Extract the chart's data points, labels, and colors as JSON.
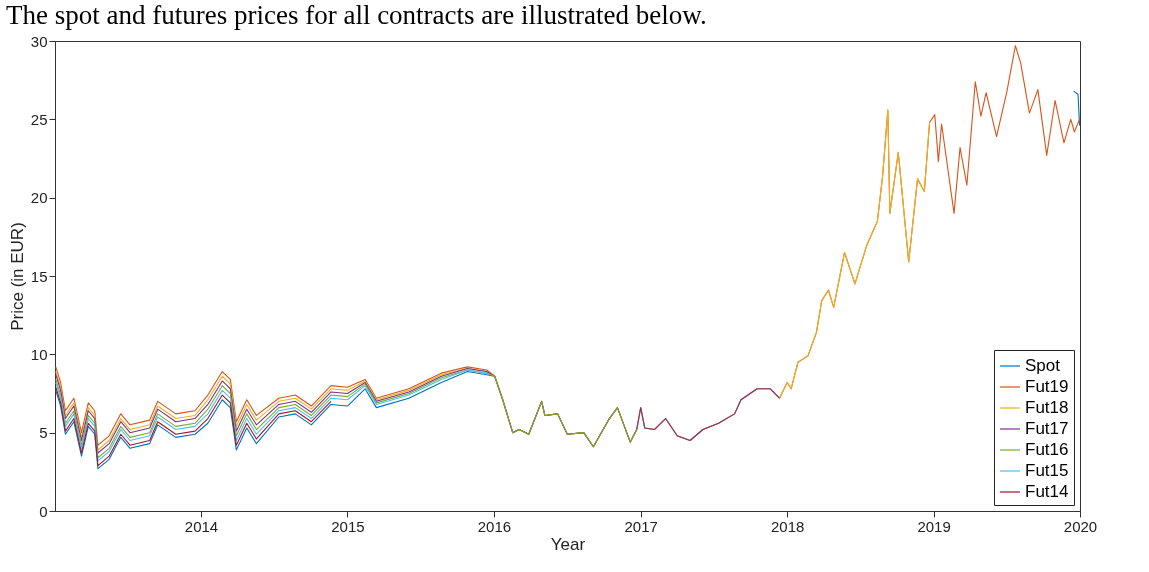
{
  "chart_data": {
    "type": "line",
    "title": "The spot and futures prices for all contracts are illustrated below.",
    "xlabel": "Year",
    "ylabel": "Price (in EUR)",
    "xlim": [
      "2013-01-02",
      "2020-01-01"
    ],
    "xticks": [
      "2014",
      "2015",
      "2016",
      "2017",
      "2018",
      "2019",
      "2020"
    ],
    "ylim": [
      0,
      30
    ],
    "yticks": [
      0,
      5,
      10,
      15,
      20,
      25,
      30
    ],
    "grid": false,
    "legend": "bottom right",
    "line_style": "solid",
    "series": [
      {
        "name": "Spot",
        "color": "#0072bd",
        "x": [
          "2013-01-04",
          "2013-01-16",
          "2013-01-28",
          "2013-02-18",
          "2013-03-09",
          "2013-03-26",
          "2013-04-11",
          "2013-04-19",
          "2013-05-17",
          "2013-06-15",
          "2013-07-08",
          "2013-08-26",
          "2013-09-15",
          "2013-10-30",
          "2013-12-17",
          "2014-01-18",
          "2014-02-23",
          "2014-03-15",
          "2014-03-30",
          "2014-04-25",
          "2014-05-19",
          "2014-07-14",
          "2014-08-24",
          "2014-10-03",
          "2014-11-21",
          "2015-01-01",
          "2015-02-14",
          "2015-03-14",
          "2015-06-03",
          "2015-08-23",
          "2015-10-27",
          "2015-12-14",
          "2016-01-03",
          "2016-01-23",
          "2016-02-17",
          "2016-03-04",
          "2016-03-28",
          "2016-04-29",
          "2016-05-07",
          "2016-06-08",
          "2016-07-02",
          "2016-08-12",
          "2016-09-05",
          "2016-10-15",
          "2016-11-04",
          "2016-12-06",
          "2016-12-22",
          "2017-01-01",
          "2017-01-11",
          "2017-02-04",
          "2017-03-04",
          "2017-04-02",
          "2017-05-04",
          "2017-06-05",
          "2017-07-14",
          "2017-08-23",
          "2017-09-08",
          "2017-10-18",
          "2017-11-20",
          "2017-12-13",
          "2018-01-01",
          "2018-01-11",
          "2018-01-28",
          "2018-02-22",
          "2018-03-15",
          "2018-03-28",
          "2018-04-14",
          "2018-04-27",
          "2018-05-24",
          "2018-06-19",
          "2018-07-19",
          "2018-08-14",
          "2018-08-27",
          "2018-09-09",
          "2018-09-14",
          "2018-10-05",
          "2018-10-31",
          "2018-11-22",
          "2018-12-09",
          "2018-12-22",
          "2019-01-04",
          "2019-01-13",
          "2019-01-21",
          "2019-02-21",
          "2019-03-08",
          "2019-03-25",
          "2019-04-15",
          "2019-04-29",
          "2019-05-12",
          "2019-06-07",
          "2019-07-03",
          "2019-07-24",
          "2019-08-06",
          "2019-08-28",
          "2019-09-18",
          "2019-10-10",
          "2019-10-31",
          "2019-11-22",
          "2019-12-09",
          "2019-12-16",
          "2019-12-27",
          "2019-12-31"
        ],
        "values": [
          7.7,
          6.7,
          4.9,
          5.7,
          3.5,
          5.4,
          4.9,
          2.7,
          3.3,
          4.7,
          4.0,
          4.3,
          5.5,
          4.7,
          4.9,
          5.6,
          7.1,
          6.6,
          3.9,
          5.3,
          4.3,
          6.0,
          6.2,
          5.5,
          6.8,
          6.7,
          7.8,
          6.6,
          7.2,
          8.2,
          8.9,
          8.7,
          8.6,
          null,
          null,
          null,
          null,
          null,
          null,
          null,
          null,
          null,
          null,
          null,
          null,
          null,
          null,
          null,
          null,
          null,
          null,
          null,
          null,
          null,
          null,
          null,
          null,
          null,
          null,
          null,
          null,
          null,
          null,
          null,
          null,
          null,
          null,
          null,
          null,
          null,
          null,
          null,
          null,
          null,
          null,
          null,
          null,
          null,
          null,
          null,
          null,
          null,
          null,
          null,
          null,
          null,
          null,
          null,
          null,
          null,
          null,
          null,
          null,
          null,
          null,
          null,
          null,
          null,
          null,
          26.8,
          26.6,
          24.6
        ]
      },
      {
        "name": "Fut19",
        "color": "#d95319",
        "x": [
          "2013-01-04",
          "2013-01-16",
          "2013-01-28",
          "2013-02-18",
          "2013-03-09",
          "2013-03-26",
          "2013-04-11",
          "2013-04-19",
          "2013-05-17",
          "2013-06-15",
          "2013-07-08",
          "2013-08-26",
          "2013-09-15",
          "2013-10-30",
          "2013-12-17",
          "2014-01-18",
          "2014-02-23",
          "2014-03-15",
          "2014-03-30",
          "2014-04-25",
          "2014-05-19",
          "2014-07-14",
          "2014-08-24",
          "2014-10-03",
          "2014-11-21",
          "2015-01-01",
          "2015-02-14",
          "2015-03-14",
          "2015-06-03",
          "2015-08-23",
          "2015-10-27",
          "2015-12-14",
          "2016-01-03",
          "2016-01-23",
          "2016-02-17",
          "2016-03-04",
          "2016-03-28",
          "2016-04-29",
          "2016-05-07",
          "2016-06-08",
          "2016-07-02",
          "2016-08-12",
          "2016-09-05",
          "2016-10-15",
          "2016-11-04",
          "2016-12-06",
          "2016-12-22",
          "2017-01-01",
          "2017-01-11",
          "2017-02-04",
          "2017-03-04",
          "2017-04-02",
          "2017-05-04",
          "2017-06-05",
          "2017-07-14",
          "2017-08-23",
          "2017-09-08",
          "2017-10-18",
          "2017-11-20",
          "2017-12-13",
          "2018-01-01",
          "2018-01-11",
          "2018-01-28",
          "2018-02-22",
          "2018-03-15",
          "2018-03-28",
          "2018-04-14",
          "2018-04-27",
          "2018-05-24",
          "2018-06-19",
          "2018-07-19",
          "2018-08-14",
          "2018-08-27",
          "2018-09-09",
          "2018-09-14",
          "2018-10-05",
          "2018-10-31",
          "2018-11-22",
          "2018-12-09",
          "2018-12-22",
          "2019-01-04",
          "2019-01-13",
          "2019-01-21",
          "2019-02-21",
          "2019-03-08",
          "2019-03-25",
          "2019-04-15",
          "2019-04-29",
          "2019-05-12",
          "2019-06-07",
          "2019-07-03",
          "2019-07-24",
          "2019-08-06",
          "2019-08-28",
          "2019-09-18",
          "2019-10-10",
          "2019-10-31",
          "2019-11-22",
          "2019-12-09",
          "2019-12-18",
          "2019-12-31"
        ],
        "values": [
          9.2,
          8.2,
          6.4,
          7.2,
          5.0,
          6.9,
          6.4,
          4.2,
          4.8,
          6.2,
          5.5,
          5.8,
          7.0,
          6.2,
          6.4,
          7.4,
          8.9,
          8.4,
          5.7,
          7.1,
          6.1,
          7.2,
          7.4,
          6.7,
          8.0,
          7.9,
          8.4,
          7.2,
          7.8,
          8.8,
          9.2,
          9.0,
          8.6,
          7.1,
          5.0,
          5.2,
          4.9,
          7.0,
          6.1,
          6.2,
          4.9,
          5.0,
          4.1,
          5.9,
          6.6,
          4.4,
          5.2,
          6.6,
          5.3,
          5.2,
          5.9,
          4.8,
          4.5,
          5.2,
          5.6,
          6.2,
          7.1,
          7.8,
          7.8,
          7.2,
          8.2,
          7.8,
          9.5,
          9.9,
          11.4,
          13.4,
          14.1,
          13.0,
          16.5,
          14.5,
          17.0,
          18.5,
          21.4,
          25.6,
          19.0,
          22.9,
          15.9,
          21.2,
          20.4,
          24.8,
          25.3,
          22.3,
          24.7,
          19.0,
          23.2,
          20.8,
          27.4,
          25.2,
          26.7,
          23.9,
          26.8,
          29.7,
          28.6,
          25.4,
          26.9,
          22.7,
          26.2,
          23.5,
          25.0,
          24.2,
          25.0
        ]
      },
      {
        "name": "Fut18",
        "color": "#edb120",
        "x": [
          "2013-01-04",
          "2013-01-16",
          "2013-01-28",
          "2013-02-18",
          "2013-03-09",
          "2013-03-26",
          "2013-04-11",
          "2013-04-19",
          "2013-05-17",
          "2013-06-15",
          "2013-07-08",
          "2013-08-26",
          "2013-09-15",
          "2013-10-30",
          "2013-12-17",
          "2014-01-18",
          "2014-02-23",
          "2014-03-15",
          "2014-03-30",
          "2014-04-25",
          "2014-05-19",
          "2014-07-14",
          "2014-08-24",
          "2014-10-03",
          "2014-11-21",
          "2015-01-01",
          "2015-02-14",
          "2015-03-14",
          "2015-06-03",
          "2015-08-23",
          "2015-10-27",
          "2015-12-14",
          "2016-01-03",
          "2016-01-23",
          "2016-02-17",
          "2016-03-04",
          "2016-03-28",
          "2016-04-29",
          "2016-05-07",
          "2016-06-08",
          "2016-07-02",
          "2016-08-12",
          "2016-09-05",
          "2016-10-15",
          "2016-11-04",
          "2016-12-06",
          "2016-12-22",
          "2017-01-01",
          "2017-01-11",
          "2017-02-04",
          "2017-03-04",
          "2017-04-02",
          "2017-05-04",
          "2017-06-05",
          "2017-07-14",
          "2017-08-23",
          "2017-09-08",
          "2017-10-18",
          "2017-11-20",
          "2017-12-13",
          "2018-01-01",
          "2018-01-11",
          "2018-01-28",
          "2018-02-22",
          "2018-03-15",
          "2018-03-28",
          "2018-04-14",
          "2018-04-27",
          "2018-05-24",
          "2018-06-19",
          "2018-07-19",
          "2018-08-14",
          "2018-08-27",
          "2018-09-09",
          "2018-09-14",
          "2018-10-05",
          "2018-10-31",
          "2018-11-22",
          "2018-12-09",
          "2018-12-22"
        ],
        "values": [
          8.9,
          7.9,
          6.1,
          6.9,
          4.7,
          6.6,
          6.1,
          3.9,
          4.5,
          5.9,
          5.2,
          5.5,
          6.7,
          5.9,
          6.1,
          7.1,
          8.6,
          8.1,
          5.4,
          6.8,
          5.8,
          7.0,
          7.2,
          6.5,
          7.8,
          7.7,
          8.3,
          7.1,
          7.7,
          8.7,
          9.1,
          8.9,
          8.6,
          7.1,
          5.0,
          5.2,
          4.9,
          7.0,
          6.1,
          6.2,
          4.9,
          5.0,
          4.1,
          5.9,
          6.6,
          4.4,
          5.2,
          6.6,
          5.3,
          5.2,
          5.9,
          4.8,
          4.5,
          5.2,
          5.6,
          6.2,
          7.1,
          7.8,
          7.8,
          7.2,
          8.2,
          7.8,
          9.5,
          9.9,
          11.4,
          13.4,
          14.1,
          13.0,
          16.5,
          14.5,
          17.0,
          18.5,
          21.4,
          25.6,
          19.0,
          22.9,
          15.9,
          21.2,
          20.4,
          24.8
        ]
      },
      {
        "name": "Fut17",
        "color": "#7e2f8e",
        "x": [
          "2013-01-04",
          "2013-01-16",
          "2013-01-28",
          "2013-02-18",
          "2013-03-09",
          "2013-03-26",
          "2013-04-11",
          "2013-04-19",
          "2013-05-17",
          "2013-06-15",
          "2013-07-08",
          "2013-08-26",
          "2013-09-15",
          "2013-10-30",
          "2013-12-17",
          "2014-01-18",
          "2014-02-23",
          "2014-03-15",
          "2014-03-30",
          "2014-04-25",
          "2014-05-19",
          "2014-07-14",
          "2014-08-24",
          "2014-10-03",
          "2014-11-21",
          "2015-01-01",
          "2015-02-14",
          "2015-03-14",
          "2015-06-03",
          "2015-08-23",
          "2015-10-27",
          "2015-12-14",
          "2016-01-03",
          "2016-01-23",
          "2016-02-17",
          "2016-03-04",
          "2016-03-28",
          "2016-04-29",
          "2016-05-07",
          "2016-06-08",
          "2016-07-02",
          "2016-08-12",
          "2016-09-05",
          "2016-10-15",
          "2016-11-04",
          "2016-12-06",
          "2016-12-22",
          "2017-01-01",
          "2017-01-11",
          "2017-02-04",
          "2017-03-04",
          "2017-04-02",
          "2017-05-04",
          "2017-06-05",
          "2017-07-14",
          "2017-08-23",
          "2017-09-08",
          "2017-10-18",
          "2017-11-20",
          "2017-12-13"
        ],
        "values": [
          8.7,
          7.7,
          5.9,
          6.7,
          4.5,
          6.4,
          5.9,
          3.7,
          4.3,
          5.7,
          5.0,
          5.3,
          6.5,
          5.7,
          5.9,
          6.8,
          8.3,
          7.8,
          5.1,
          6.5,
          5.5,
          6.8,
          7.0,
          6.3,
          7.6,
          7.5,
          8.2,
          7.0,
          7.6,
          8.6,
          9.1,
          8.9,
          8.6,
          7.1,
          5.0,
          5.2,
          4.9,
          7.0,
          6.1,
          6.2,
          4.9,
          5.0,
          4.1,
          5.9,
          6.6,
          4.4,
          5.2,
          6.6,
          5.3,
          5.2,
          5.9,
          4.8,
          4.5,
          5.2,
          5.6,
          6.2,
          7.1,
          7.8,
          7.8,
          7.2
        ]
      },
      {
        "name": "Fut16",
        "color": "#77ac30",
        "x": [
          "2013-01-04",
          "2013-01-16",
          "2013-01-28",
          "2013-02-18",
          "2013-03-09",
          "2013-03-26",
          "2013-04-11",
          "2013-04-19",
          "2013-05-17",
          "2013-06-15",
          "2013-07-08",
          "2013-08-26",
          "2013-09-15",
          "2013-10-30",
          "2013-12-17",
          "2014-01-18",
          "2014-02-23",
          "2014-03-15",
          "2014-03-30",
          "2014-04-25",
          "2014-05-19",
          "2014-07-14",
          "2014-08-24",
          "2014-10-03",
          "2014-11-21",
          "2015-01-01",
          "2015-02-14",
          "2015-03-14",
          "2015-06-03",
          "2015-08-23",
          "2015-10-27",
          "2015-12-14",
          "2016-01-03",
          "2016-01-23",
          "2016-02-17",
          "2016-03-04",
          "2016-03-28",
          "2016-04-29",
          "2016-05-07",
          "2016-06-08",
          "2016-07-02",
          "2016-08-12",
          "2016-09-05",
          "2016-10-15",
          "2016-11-04",
          "2016-12-06",
          "2016-12-22"
        ],
        "values": [
          8.4,
          7.4,
          5.6,
          6.4,
          4.2,
          6.1,
          5.6,
          3.4,
          4.0,
          5.4,
          4.7,
          5.0,
          6.2,
          5.4,
          5.6,
          6.5,
          8.0,
          7.5,
          4.8,
          6.2,
          5.2,
          6.6,
          6.8,
          6.1,
          7.4,
          7.3,
          8.1,
          6.9,
          7.5,
          8.5,
          9.0,
          8.8,
          8.6,
          7.1,
          5.0,
          5.2,
          4.9,
          7.0,
          6.1,
          6.2,
          4.9,
          5.0,
          4.1,
          5.9,
          6.6,
          4.4,
          5.2
        ]
      },
      {
        "name": "Fut15",
        "color": "#4dbeee",
        "x": [
          "2013-01-04",
          "2013-01-16",
          "2013-01-28",
          "2013-02-18",
          "2013-03-09",
          "2013-03-26",
          "2013-04-11",
          "2013-04-19",
          "2013-05-17",
          "2013-06-15",
          "2013-07-08",
          "2013-08-26",
          "2013-09-15",
          "2013-10-30",
          "2013-12-17",
          "2014-01-18",
          "2014-02-23",
          "2014-03-15",
          "2014-03-30",
          "2014-04-25",
          "2014-05-19",
          "2014-07-14",
          "2014-08-24",
          "2014-10-03",
          "2014-11-21",
          "2015-01-01",
          "2015-02-14",
          "2015-03-14",
          "2015-06-03",
          "2015-08-23",
          "2015-10-27",
          "2015-12-14"
        ],
        "values": [
          8.2,
          7.2,
          5.4,
          6.2,
          4.0,
          5.9,
          5.4,
          3.2,
          3.8,
          5.2,
          4.5,
          4.8,
          6.0,
          5.2,
          5.4,
          6.2,
          7.7,
          7.2,
          4.5,
          5.9,
          4.9,
          6.4,
          6.6,
          5.9,
          7.2,
          7.1,
          8.0,
          6.8,
          7.4,
          8.4,
          9.0,
          8.8
        ]
      },
      {
        "name": "Fut14",
        "color": "#a2142f",
        "x": [
          "2013-01-04",
          "2013-01-16",
          "2013-01-28",
          "2013-02-18",
          "2013-03-09",
          "2013-03-26",
          "2013-04-11",
          "2013-04-19",
          "2013-05-17",
          "2013-06-15",
          "2013-07-08",
          "2013-08-26",
          "2013-09-15",
          "2013-10-30",
          "2013-12-17",
          "2014-01-18",
          "2014-02-23",
          "2014-03-15",
          "2014-03-30",
          "2014-04-25",
          "2014-05-19",
          "2014-07-14",
          "2014-08-24",
          "2014-10-03",
          "2014-11-21"
        ],
        "values": [
          7.9,
          6.9,
          5.1,
          5.9,
          3.7,
          5.6,
          5.1,
          2.9,
          3.5,
          4.9,
          4.2,
          4.5,
          5.7,
          4.9,
          5.1,
          5.9,
          7.4,
          6.9,
          4.2,
          5.6,
          4.6,
          6.2,
          6.4,
          5.7,
          7.0
        ]
      }
    ]
  }
}
